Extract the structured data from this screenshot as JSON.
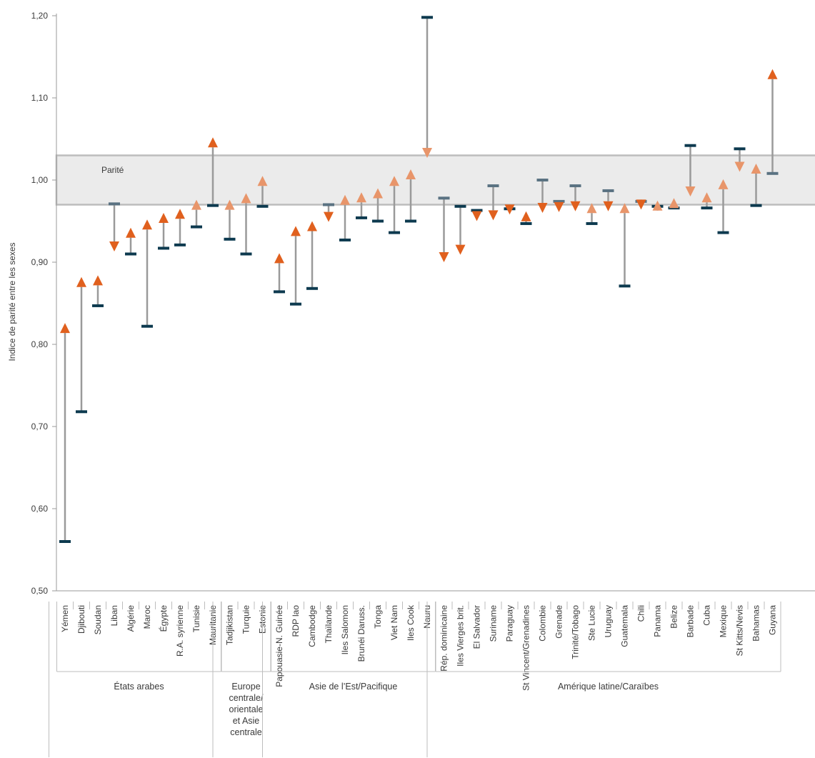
{
  "chart_data": {
    "type": "dumbbell",
    "ylabel": "Indice de parité entre les sexes",
    "ylim": [
      0.5,
      1.2
    ],
    "yticks": [
      "0,50",
      "0,60",
      "0,70",
      "0,80",
      "0,90",
      "1,00",
      "1,10",
      "1,20"
    ],
    "yticks_values": [
      0.5,
      0.6,
      0.7,
      0.8,
      0.9,
      1.0,
      1.1,
      1.2
    ],
    "parity_band": {
      "label": "Parité",
      "range": [
        0.97,
        1.03
      ]
    },
    "colors": {
      "start_marker": "#0d3a4f",
      "start_marker_light": "#5a7282",
      "arrow_dark": "#e0601e",
      "arrow_light": "#e8956a",
      "connector": "#9a9a9a",
      "band_fill": "#ebebeb",
      "band_stroke": "#bdbdbd"
    },
    "groups": [
      {
        "label": "États arabes",
        "categories": [
          {
            "label": "Yémen",
            "start": 0.56,
            "end": 0.826
          },
          {
            "label": "Djibouti",
            "start": 0.718,
            "end": 0.882
          },
          {
            "label": "Soudan",
            "start": 0.847,
            "end": 0.884
          },
          {
            "label": "Liban",
            "start": 0.971,
            "end": 0.913
          },
          {
            "label": "Algérie",
            "start": 0.91,
            "end": 0.942
          },
          {
            "label": "Maroc",
            "start": 0.822,
            "end": 0.952
          },
          {
            "label": "Égypte",
            "start": 0.917,
            "end": 0.96
          },
          {
            "label": "R.A. syrienne",
            "start": 0.921,
            "end": 0.965
          },
          {
            "label": "Tunisie",
            "start": 0.943,
            "end": 0.976
          },
          {
            "label": "Mauritanie",
            "start": 0.969,
            "end": 1.052
          }
        ]
      },
      {
        "label": "Europe centrale/ orientale et Asie centrale",
        "categories": [
          {
            "label": "Tadjikistan",
            "start": 0.928,
            "end": 0.976
          },
          {
            "label": "Turquie",
            "start": 0.91,
            "end": 0.984
          },
          {
            "label": "Estonie",
            "start": 0.968,
            "end": 1.005
          }
        ]
      },
      {
        "label": "Asie de l’Est/Pacifique",
        "categories": [
          {
            "label": "Papouasie-N. Guinée",
            "start": 0.864,
            "end": 0.911
          },
          {
            "label": "RDP lao",
            "start": 0.849,
            "end": 0.944
          },
          {
            "label": "Cambodge",
            "start": 0.868,
            "end": 0.95
          },
          {
            "label": "Thaïlande",
            "start": 0.97,
            "end": 0.949
          },
          {
            "label": "Iles Salomon",
            "start": 0.927,
            "end": 0.982
          },
          {
            "label": "Brunéi Daruss.",
            "start": 0.954,
            "end": 0.985
          },
          {
            "label": "Tonga",
            "start": 0.95,
            "end": 0.99
          },
          {
            "label": "Viet Nam",
            "start": 0.936,
            "end": 1.005
          },
          {
            "label": "Iles Cook",
            "start": 0.95,
            "end": 1.013
          },
          {
            "label": "Nauru",
            "start": 1.198,
            "end": 1.027
          }
        ]
      },
      {
        "label": "Amérique latine/Caraïbes",
        "categories": [
          {
            "label": "Rép. dominicaine",
            "start": 0.978,
            "end": 0.9
          },
          {
            "label": "Iles Vierges brit.",
            "start": 0.968,
            "end": 0.909
          },
          {
            "label": "El Salvador",
            "start": 0.963,
            "end": 0.95
          },
          {
            "label": "Suriname",
            "start": 0.993,
            "end": 0.951
          },
          {
            "label": "Paraguay",
            "start": 0.965,
            "end": 0.958
          },
          {
            "label": "St Vincent/Grenadines",
            "start": 0.947,
            "end": 0.962
          },
          {
            "label": "Colombie",
            "start": 1.0,
            "end": 0.96
          },
          {
            "label": "Grenade",
            "start": 0.974,
            "end": 0.961
          },
          {
            "label": "Trinité/Tobago",
            "start": 0.993,
            "end": 0.962
          },
          {
            "label": "Ste Lucie",
            "start": 0.947,
            "end": 0.972
          },
          {
            "label": "Uruguay",
            "start": 0.987,
            "end": 0.962
          },
          {
            "label": "Guatemala",
            "start": 0.871,
            "end": 0.972
          },
          {
            "label": "Chili",
            "start": 0.974,
            "end": 0.964
          },
          {
            "label": "Panama",
            "start": 0.968,
            "end": 0.975
          },
          {
            "label": "Belize",
            "start": 0.966,
            "end": 0.978
          },
          {
            "label": "Barbade",
            "start": 1.042,
            "end": 0.98
          },
          {
            "label": "Cuba",
            "start": 0.966,
            "end": 0.985
          },
          {
            "label": "Mexique",
            "start": 0.936,
            "end": 1.001
          },
          {
            "label": "St Kitts/Nevis",
            "start": 1.038,
            "end": 1.01
          },
          {
            "label": "Bahamas",
            "start": 0.969,
            "end": 1.02
          },
          {
            "label": "Guyana",
            "start": 1.008,
            "end": 1.135
          }
        ]
      }
    ]
  }
}
